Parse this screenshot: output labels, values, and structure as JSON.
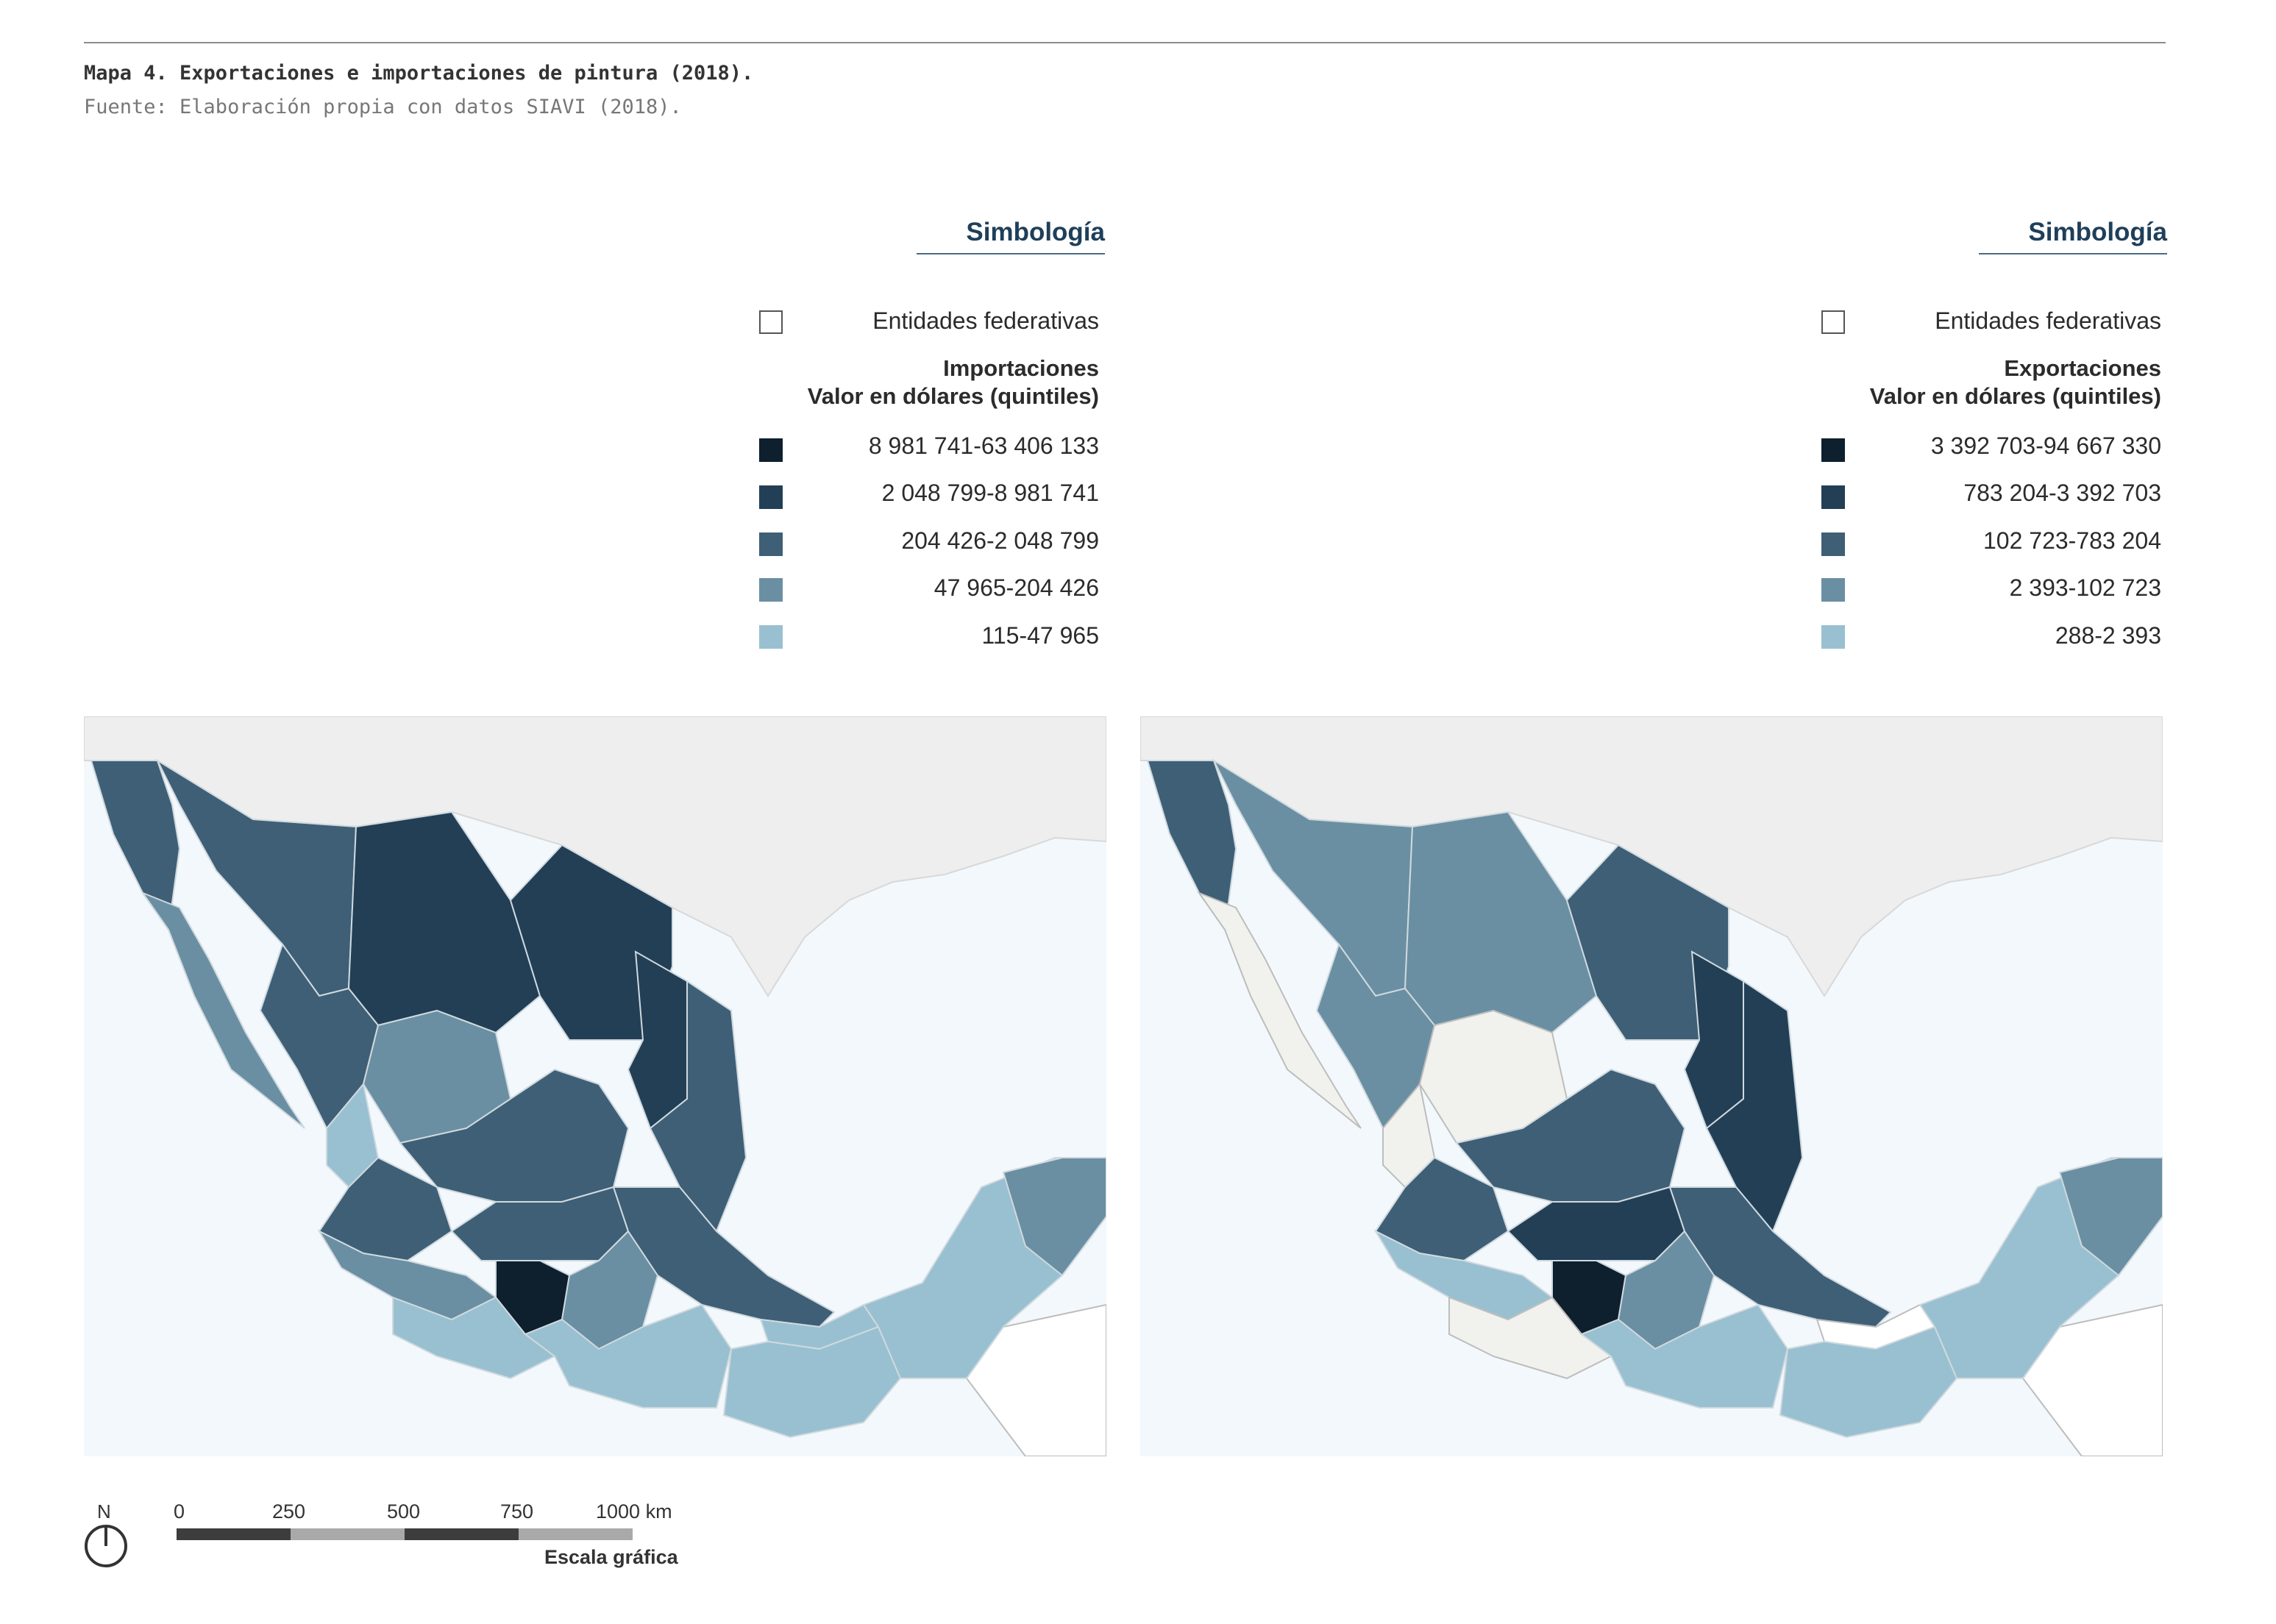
{
  "caption": "Mapa 4. Exportaciones e importaciones de pintura (2018).",
  "source": "Fuente: Elaboración propia con datos SIAVI (2018).",
  "colors": {
    "q5": "#0e1f2e",
    "q4": "#223f56",
    "q3": "#3e5f76",
    "q2": "#6a8fa2",
    "q1": "#99c0d0",
    "ocean": "#f2f8fb",
    "land_other": "#ffffff",
    "no_data": "#f1f1ee",
    "usa": "#eeeeee"
  },
  "legend_left": {
    "title": "Simbología",
    "entities_label": "Entidades federativas",
    "heading_line1": "Importaciones",
    "heading_line2": "Valor en dólares (quintiles)",
    "classes": [
      {
        "label": "8 981 741-63 406 133",
        "color": "#0e1f2e"
      },
      {
        "label": "2 048 799-8 981 741",
        "color": "#223f56"
      },
      {
        "label": "204 426-2 048 799",
        "color": "#3e5f76"
      },
      {
        "label": "47 965-204 426",
        "color": "#6a8fa2"
      },
      {
        "label": "115-47 965",
        "color": "#99c0d0"
      }
    ]
  },
  "legend_right": {
    "title": "Simbología",
    "entities_label": "Entidades federativas",
    "heading_line1": "Exportaciones",
    "heading_line2": "Valor en dólares (quintiles)",
    "classes": [
      {
        "label": "3 392 703-94 667 330",
        "color": "#0e1f2e"
      },
      {
        "label": "783 204-3 392 703",
        "color": "#223f56"
      },
      {
        "label": "102 723-783 204",
        "color": "#3e5f76"
      },
      {
        "label": "2 393-102 723",
        "color": "#6a8fa2"
      },
      {
        "label": "288-2 393",
        "color": "#99c0d0"
      }
    ]
  },
  "scale": {
    "north": "N",
    "ticks": [
      "0",
      "250",
      "500",
      "750",
      "1000 km"
    ],
    "title": "Escala gráfica"
  }
}
